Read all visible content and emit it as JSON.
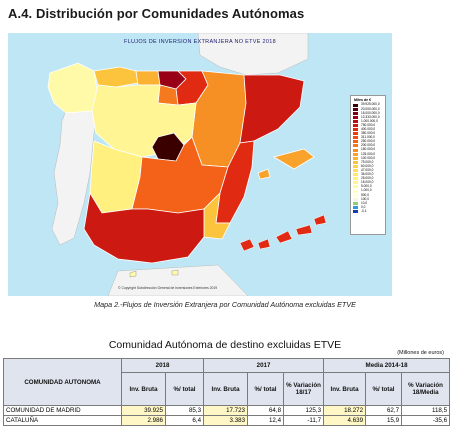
{
  "page": {
    "section_title": "A.4. Distribución por Comunidades Autónomas",
    "map_caption": "Mapa 2.-Flujos de Inversión Extranjera por Comunidad Autónoma excluidas ETVE"
  },
  "map": {
    "title": "FLUJOS DE INVERSION EXTRANJERA NO ETVE 2018",
    "credit": "© Copyright  Subdirección General de Inversiones Exteriores 2019",
    "sea_color": "#bfe6f5",
    "legend": {
      "title": "Miles de €",
      "items": [
        {
          "label": "39.925.000,0",
          "color": "#3a0000"
        },
        {
          "label": "20.000.000,0",
          "color": "#5c0010"
        },
        {
          "label": "15.000.000,0",
          "color": "#7a0016"
        },
        {
          "label": "13.333.000,0",
          "color": "#990018"
        },
        {
          "label": "1.000.000,0",
          "color": "#b50d12"
        },
        {
          "label": "750.000,0",
          "color": "#cc1a12"
        },
        {
          "label": "400.000,0",
          "color": "#e02a12"
        },
        {
          "label": "350.000,0",
          "color": "#ec3b14"
        },
        {
          "label": "311.000,0",
          "color": "#f24e16"
        },
        {
          "label": "250.000,0",
          "color": "#f4621a"
        },
        {
          "label": "200.000,0",
          "color": "#f57a1f"
        },
        {
          "label": "150.000,0",
          "color": "#f79024"
        },
        {
          "label": "125.000,0",
          "color": "#f9a22c"
        },
        {
          "label": "100.000,0",
          "color": "#fbb233"
        },
        {
          "label": "75.000,0",
          "color": "#fcc43c"
        },
        {
          "label": "60.000,0",
          "color": "#fdd24a"
        },
        {
          "label": "47.000,0",
          "color": "#fede5c"
        },
        {
          "label": "36.000,0",
          "color": "#fee86e"
        },
        {
          "label": "25.000,0",
          "color": "#fff080"
        },
        {
          "label": "15.000,0",
          "color": "#fff594"
        },
        {
          "label": "5.000,0",
          "color": "#fffaa8"
        },
        {
          "label": "1.000,0",
          "color": "#ffffc0"
        },
        {
          "label": "500,0",
          "color": "#ffffd8"
        },
        {
          "label": "100,0",
          "color": "#f4f6e6"
        },
        {
          "label": "10,0",
          "color": "#8ecf6a"
        },
        {
          "label": "0,0",
          "color": "#2e9be0"
        },
        {
          "label": "-0,1",
          "color": "#1a3da8"
        }
      ]
    },
    "region_colors": {
      "galicia": "#fffaa8",
      "asturias": "#fcc43c",
      "cantabria": "#fbb233",
      "pais_vasco": "#990018",
      "navarra": "#e02a12",
      "la_rioja": "#f57a1f",
      "aragon": "#f79024",
      "cataluna": "#cc1a12",
      "castilla_leon": "#fff594",
      "madrid": "#3a0000",
      "castilla_la_mancha": "#f4621a",
      "extremadura": "#fff080",
      "valencia": "#e02a12",
      "murcia": "#fcc43c",
      "andalucia": "#cc1a12",
      "baleares": "#f9a22c",
      "canarias": "#e02a12",
      "ceuta_melilla": "#fffaa8"
    }
  },
  "table": {
    "title": "Comunidad Autónoma de destino excluidas ETVE",
    "units": "(Millones de euros)",
    "header_label": "COMUNIDAD AUTONOMA",
    "groups": [
      "2018",
      "2017",
      "Media 2014-18"
    ],
    "subheaders": {
      "g2018": [
        "Inv. Bruta",
        "%/ total"
      ],
      "g2017": [
        "Inv. Bruta",
        "%/ total",
        "% Variación 18/17"
      ],
      "gmedia": [
        "Inv. Bruta",
        "%/ total",
        "% Variación 18/Media"
      ]
    },
    "rows": [
      {
        "name": "COMUNIDAD DE MADRID",
        "values": [
          "39.925",
          "85,3",
          "17.723",
          "64,8",
          "125,3",
          "18.272",
          "62,7",
          "118,5"
        ]
      },
      {
        "name": "CATALUÑA",
        "values": [
          "2.986",
          "6,4",
          "3.383",
          "12,4",
          "-11,7",
          "4.639",
          "15,9",
          "-35,6"
        ]
      }
    ]
  }
}
